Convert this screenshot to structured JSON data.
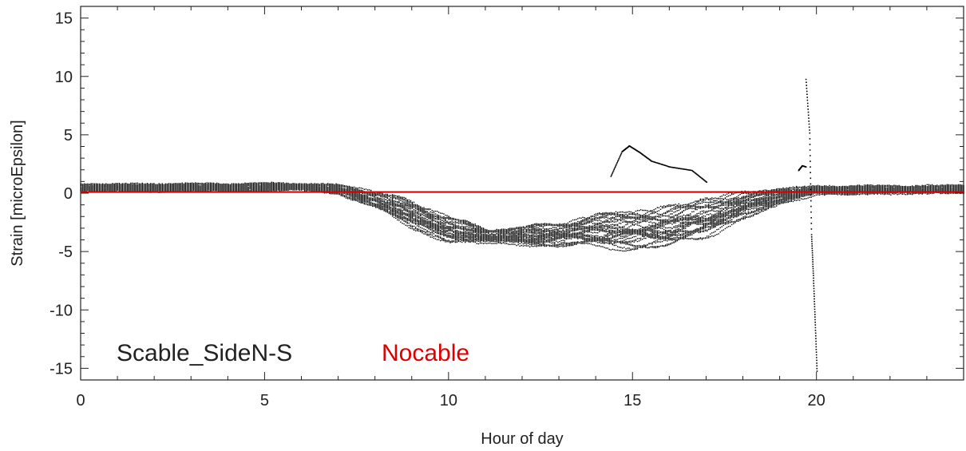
{
  "chart_data": {
    "type": "scatter",
    "xlabel": "Hour of day",
    "ylabel": "Strain [microEpsilon]",
    "xlim": [
      0,
      24
    ],
    "ylim": [
      -16,
      16
    ],
    "xticks": [
      0,
      5,
      10,
      15,
      20
    ],
    "yticks": [
      -15,
      -10,
      -5,
      0,
      5,
      10,
      15
    ],
    "xtick_labels": [
      "0",
      "5",
      "10",
      "15",
      "20"
    ],
    "ytick_labels": [
      "-15",
      "-10",
      "-5",
      "0",
      "5",
      "10",
      "15"
    ],
    "grid": false,
    "legend_position": "bottom-left",
    "series": [
      {
        "name": "Scable_SideN-S",
        "color": "#000000",
        "style": "dots",
        "note_curves": 30,
        "envelope_x": [
          0,
          6,
          7,
          8,
          9,
          10,
          11,
          12,
          13,
          14,
          15,
          16,
          17,
          18,
          19,
          20,
          24
        ],
        "envelope_center": [
          0.5,
          0.6,
          0.4,
          -0.5,
          -1.8,
          -3.0,
          -3.6,
          -3.6,
          -3.4,
          -3.2,
          -3.0,
          -2.8,
          -2.0,
          -1.0,
          -0.2,
          0.3,
          0.4
        ],
        "envelope_spread": [
          0.3,
          0.3,
          0.35,
          0.7,
          1.1,
          1.0,
          0.6,
          0.7,
          1.0,
          1.3,
          1.5,
          1.6,
          1.5,
          1.1,
          0.6,
          0.35,
          0.3
        ],
        "spikes": [
          {
            "x": [
              14.4,
              14.7,
              14.9,
              15.2,
              15.5,
              16.0,
              16.6,
              17.0
            ],
            "y": [
              1.5,
              3.6,
              4.1,
              3.5,
              2.8,
              2.3,
              2.0,
              1.0
            ]
          },
          {
            "x": [
              19.7,
              19.8,
              19.85,
              19.9,
              19.95,
              20.0
            ],
            "y": [
              9.8,
              5.2,
              -3.5,
              -7.0,
              -11.0,
              -15.2
            ]
          },
          {
            "x": [
              19.5,
              19.6,
              19.7
            ],
            "y": [
              2.0,
              2.4,
              2.3
            ]
          }
        ]
      },
      {
        "name": "Nocable",
        "color": "#dd0000",
        "style": "line",
        "x": [
          0,
          24
        ],
        "y": [
          0.1,
          0.1
        ]
      }
    ]
  }
}
